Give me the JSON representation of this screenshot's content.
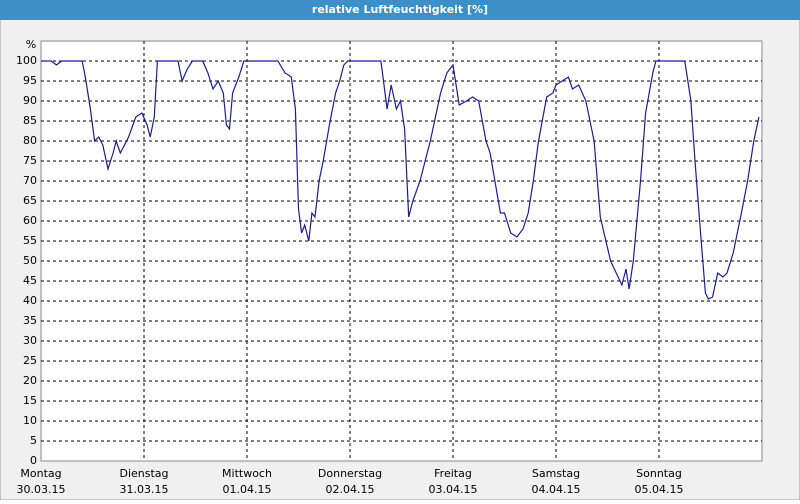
{
  "chart_data": {
    "type": "line",
    "title": "relative Luftfeuchtigkeit [%]",
    "ylabel": "%",
    "xlim": [
      0,
      7
    ],
    "ylim": [
      0,
      105
    ],
    "yticks": [
      0,
      5,
      10,
      15,
      20,
      25,
      30,
      35,
      40,
      45,
      50,
      55,
      60,
      65,
      70,
      75,
      80,
      85,
      90,
      95,
      100
    ],
    "xticks": [
      {
        "value": 0,
        "label": "Montag"
      },
      {
        "value": 1,
        "label": "Dienstag"
      },
      {
        "value": 2,
        "label": "Mittwoch"
      },
      {
        "value": 3,
        "label": "Donnerstag"
      },
      {
        "value": 4,
        "label": "Freitag"
      },
      {
        "value": 5,
        "label": "Samstag"
      },
      {
        "value": 6,
        "label": "Sonntag"
      }
    ],
    "xtick_dates": [
      "30.03.15",
      "31.03.15",
      "01.04.15",
      "02.04.15",
      "03.04.15",
      "04.04.15",
      "05.04.15"
    ],
    "grid": true,
    "series": [
      {
        "color": "#1c1c9c",
        "x": [
          0,
          0.1,
          0.15,
          0.2,
          0.4,
          0.43,
          0.48,
          0.52,
          0.56,
          0.6,
          0.65,
          0.7,
          0.73,
          0.77,
          0.85,
          0.92,
          0.98,
          1.03,
          1.06,
          1.1,
          1.13,
          1.33,
          1.37,
          1.42,
          1.47,
          1.57,
          1.62,
          1.67,
          1.72,
          1.77,
          1.8,
          1.83,
          1.86,
          1.92,
          1.97,
          2.3,
          2.37,
          2.43,
          2.47,
          2.5,
          2.53,
          2.56,
          2.6,
          2.63,
          2.66,
          2.7,
          2.74,
          2.8,
          2.86,
          2.9,
          2.94,
          2.98,
          3.3,
          3.36,
          3.4,
          3.45,
          3.49,
          3.53,
          3.57,
          3.61,
          3.68,
          3.78,
          3.88,
          3.94,
          4.0,
          4.06,
          4.13,
          4.19,
          4.25,
          4.32,
          4.36,
          4.46,
          4.5,
          4.56,
          4.62,
          4.68,
          4.73,
          4.78,
          4.83,
          4.91,
          4.97,
          5.0,
          5.06,
          5.12,
          5.16,
          5.22,
          5.29,
          5.37,
          5.43,
          5.53,
          5.64,
          5.68,
          5.71,
          5.75,
          5.82,
          5.87,
          5.94,
          5.97,
          6.25,
          6.31,
          6.35,
          6.41,
          6.45,
          6.48,
          6.52,
          6.57,
          6.62,
          6.66,
          6.72,
          6.76,
          6.8,
          6.86,
          6.92,
          6.97
        ],
        "values": [
          100,
          100,
          99,
          100,
          100,
          96,
          88,
          80,
          81,
          79,
          73,
          77,
          80,
          77,
          81,
          86,
          87,
          84,
          81,
          86,
          100,
          100,
          95,
          98,
          100,
          100,
          97,
          93,
          95,
          92,
          84,
          83,
          92,
          96,
          100,
          100,
          97,
          96,
          88,
          63,
          57,
          59,
          55,
          62,
          61,
          70,
          75,
          84,
          92,
          95,
          99,
          100,
          100,
          88,
          94,
          88,
          90,
          83,
          61,
          65,
          70,
          80,
          92,
          97,
          99,
          89,
          90,
          91,
          90,
          80,
          77,
          62,
          62,
          57,
          56,
          58,
          62,
          70,
          80,
          91,
          92,
          94,
          95,
          96,
          93,
          94,
          90,
          80,
          61,
          50,
          44,
          48,
          43,
          50,
          70,
          87,
          97,
          100,
          100,
          90,
          75,
          55,
          42,
          40.5,
          41,
          47,
          46,
          47,
          52,
          57,
          62,
          70,
          80,
          86
        ]
      }
    ]
  }
}
